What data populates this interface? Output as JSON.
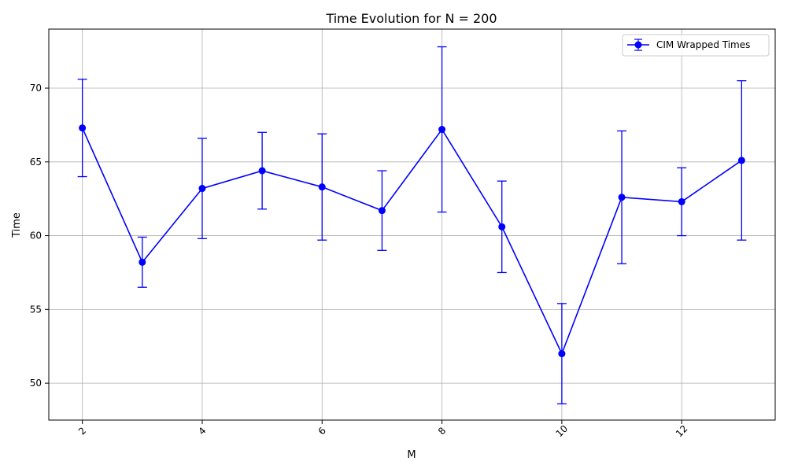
{
  "chart_data": {
    "type": "line",
    "title": "Time Evolution for N = 200",
    "xlabel": "M",
    "ylabel": "Time",
    "xlim": [
      1.44,
      13.56
    ],
    "ylim": [
      47.5,
      74.0
    ],
    "x_ticks": [
      2,
      4,
      6,
      8,
      10,
      12
    ],
    "y_ticks": [
      50,
      55,
      60,
      65,
      70
    ],
    "grid": true,
    "x_tick_rotation": -45,
    "legend_position": "top-right",
    "series": [
      {
        "name": "CIM Wrapped Times",
        "color": "#0000ff",
        "marker": "circle",
        "x": [
          2,
          3,
          4,
          5,
          6,
          7,
          8,
          9,
          10,
          11,
          12,
          13
        ],
        "y": [
          67.3,
          58.2,
          63.2,
          64.4,
          63.3,
          61.7,
          67.2,
          60.6,
          52.0,
          62.6,
          62.3,
          65.1
        ],
        "error": [
          3.3,
          1.7,
          3.4,
          2.6,
          3.6,
          2.7,
          5.6,
          3.1,
          3.4,
          4.5,
          2.3,
          5.4
        ]
      }
    ]
  }
}
